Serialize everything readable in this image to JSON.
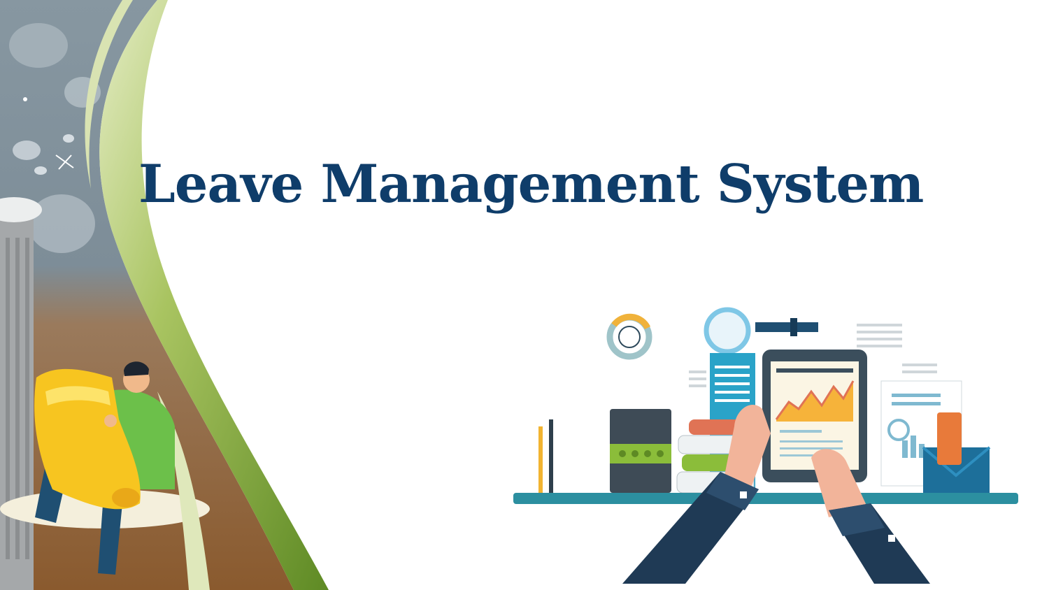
{
  "slide": {
    "title": "Leave Management System",
    "title_color": "#0f3d6a"
  },
  "decoration": {
    "left_panel_icon": "person-holding-scroll-icon",
    "right_panel_icon": "hands-holding-tablet-analytics-icon"
  },
  "colors": {
    "sky": "#7e8f9a",
    "ground": "#8a5a2e",
    "swoosh_green": "#6f9a2f",
    "swoosh_light": "#c9d88f",
    "scroll_yellow": "#f7c520",
    "desk_teal": "#2c8fa0",
    "sleeve_navy": "#1f3a55"
  }
}
